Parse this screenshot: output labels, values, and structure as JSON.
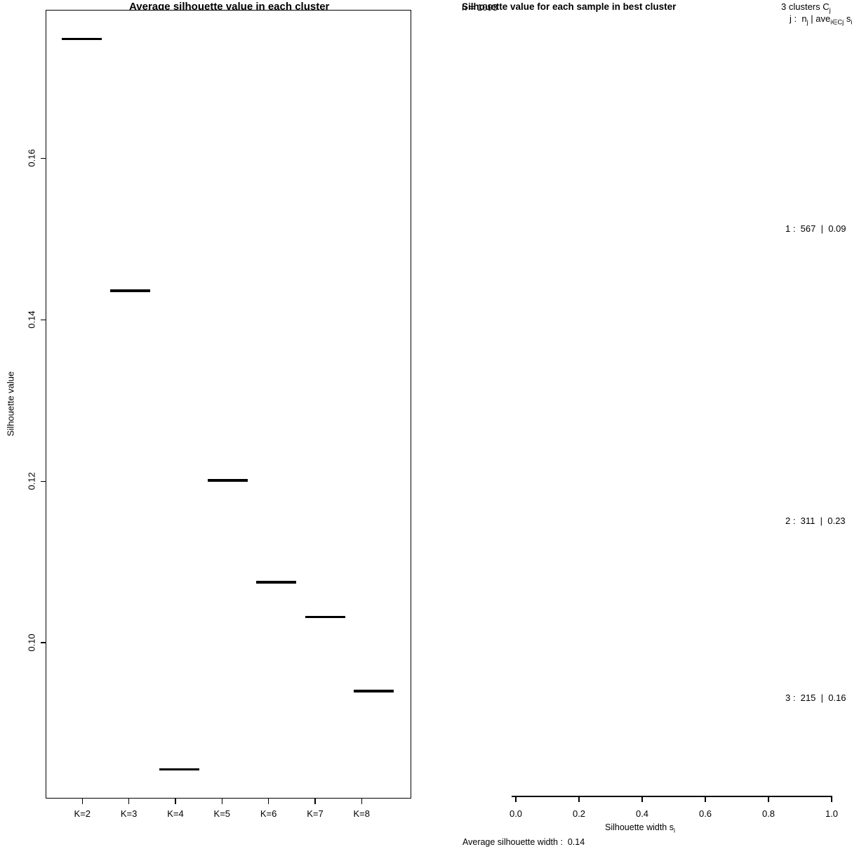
{
  "figure": {
    "background": "#ffffff",
    "ink": "#000000"
  },
  "chart_data": [
    {
      "type": "bar",
      "subtype": "mean-line-per-category",
      "title": "Average silhouette value in each cluster",
      "xlabel": "",
      "ylabel": "Silhouette value",
      "categories": [
        "K=2",
        "K=3",
        "K=4",
        "K=5",
        "K=6",
        "K=7",
        "K=8"
      ],
      "values": [
        0.1748,
        0.1436,
        0.0843,
        0.1201,
        0.1075,
        0.1032,
        0.094
      ],
      "ylim": [
        0.0807,
        0.1784
      ],
      "yticks": [
        0.16,
        0.14,
        0.12,
        0.1
      ],
      "ytick_labels": [
        "0.16",
        "0.14",
        "0.12",
        "0.10"
      ],
      "grid": false,
      "legend": null,
      "marker_color": "#000000"
    },
    {
      "type": "bar",
      "subtype": "silhouette-plot",
      "title": "Silhouette value for each sample in best cluster",
      "n_annotation": "n = 1093",
      "cluster_header": {
        "text": "3 clusters C",
        "sub": "j"
      },
      "formula": {
        "p1": "j :  n",
        "s1": "j",
        "p2": " | ave",
        "s2": "i∈Cj",
        "p3": " s",
        "s3": "i"
      },
      "clusters": [
        {
          "j": 1,
          "n": 567,
          "avg_sil_width": 0.09,
          "label": "1 :  567  |  0.09"
        },
        {
          "j": 2,
          "n": 311,
          "avg_sil_width": 0.23,
          "label": "2 :  311  |  0.23"
        },
        {
          "j": 3,
          "n": 215,
          "avg_sil_width": 0.16,
          "label": "3 :  215  |  0.16"
        }
      ],
      "xlabel": {
        "text": "Silhouette width s",
        "sub": "i"
      },
      "xlim": [
        0.0,
        1.0
      ],
      "xticks": [
        "0.0",
        "0.2",
        "0.4",
        "0.6",
        "0.8",
        "1.0"
      ],
      "bars_visible": false,
      "grid": false,
      "footer": "Average silhouette width :  0.14",
      "average_width": 0.14
    }
  ]
}
